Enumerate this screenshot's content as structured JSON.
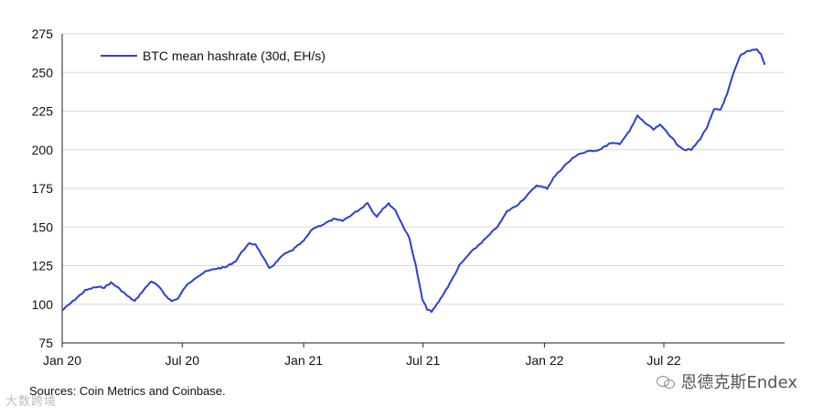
{
  "chart_data": {
    "type": "line",
    "title": "",
    "xlabel": "",
    "ylabel": "",
    "ylim": [
      75,
      275
    ],
    "yticks": [
      75,
      100,
      125,
      150,
      175,
      200,
      225,
      250,
      275
    ],
    "xlim": [
      "2020-01-01",
      "2022-12-31"
    ],
    "xticks": [
      {
        "date": "2020-01-01",
        "label": "Jan 20"
      },
      {
        "date": "2020-07-01",
        "label": "Jul 20"
      },
      {
        "date": "2021-01-01",
        "label": "Jan 21"
      },
      {
        "date": "2021-07-01",
        "label": "Jul 21"
      },
      {
        "date": "2022-01-01",
        "label": "Jan 22"
      },
      {
        "date": "2022-07-01",
        "label": "Jul 22"
      }
    ],
    "grid": "horizontal",
    "legend_position": "top-left",
    "series": [
      {
        "name": "BTC mean hashrate (30d, EH/s)",
        "color": "#2b3fd6",
        "points": [
          [
            "2020-01-01",
            96
          ],
          [
            "2020-01-20",
            103
          ],
          [
            "2020-02-05",
            109
          ],
          [
            "2020-02-20",
            111
          ],
          [
            "2020-03-05",
            111
          ],
          [
            "2020-03-15",
            114
          ],
          [
            "2020-03-25",
            111
          ],
          [
            "2020-04-10",
            105
          ],
          [
            "2020-04-20",
            102
          ],
          [
            "2020-05-01",
            108
          ],
          [
            "2020-05-15",
            115
          ],
          [
            "2020-05-25",
            112
          ],
          [
            "2020-06-05",
            106
          ],
          [
            "2020-06-15",
            102
          ],
          [
            "2020-06-25",
            104
          ],
          [
            "2020-07-05",
            111
          ],
          [
            "2020-07-20",
            117
          ],
          [
            "2020-08-05",
            121
          ],
          [
            "2020-08-20",
            123
          ],
          [
            "2020-09-05",
            124
          ],
          [
            "2020-09-20",
            128
          ],
          [
            "2020-10-01",
            135
          ],
          [
            "2020-10-10",
            139
          ],
          [
            "2020-10-20",
            139
          ],
          [
            "2020-11-01",
            130
          ],
          [
            "2020-11-10",
            123
          ],
          [
            "2020-11-20",
            127
          ],
          [
            "2020-12-01",
            132
          ],
          [
            "2020-12-15",
            135
          ],
          [
            "2021-01-01",
            141
          ],
          [
            "2021-01-15",
            149
          ],
          [
            "2021-02-01",
            152
          ],
          [
            "2021-02-15",
            155
          ],
          [
            "2021-03-01",
            154
          ],
          [
            "2021-03-15",
            158
          ],
          [
            "2021-04-01",
            163
          ],
          [
            "2021-04-08",
            166
          ],
          [
            "2021-04-15",
            160
          ],
          [
            "2021-04-22",
            157
          ],
          [
            "2021-05-01",
            162
          ],
          [
            "2021-05-10",
            165
          ],
          [
            "2021-05-20",
            161
          ],
          [
            "2021-05-30",
            152
          ],
          [
            "2021-06-10",
            143
          ],
          [
            "2021-06-20",
            125
          ],
          [
            "2021-06-30",
            103
          ],
          [
            "2021-07-07",
            97
          ],
          [
            "2021-07-14",
            95
          ],
          [
            "2021-07-25",
            102
          ],
          [
            "2021-08-10",
            113
          ],
          [
            "2021-08-25",
            125
          ],
          [
            "2021-09-10",
            133
          ],
          [
            "2021-09-25",
            139
          ],
          [
            "2021-10-10",
            145
          ],
          [
            "2021-10-25",
            152
          ],
          [
            "2021-11-05",
            160
          ],
          [
            "2021-11-20",
            164
          ],
          [
            "2021-12-05",
            170
          ],
          [
            "2021-12-20",
            177
          ],
          [
            "2022-01-05",
            175
          ],
          [
            "2022-01-15",
            182
          ],
          [
            "2022-02-01",
            190
          ],
          [
            "2022-02-20",
            197
          ],
          [
            "2022-03-10",
            199
          ],
          [
            "2022-03-25",
            200
          ],
          [
            "2022-04-10",
            204
          ],
          [
            "2022-04-25",
            204
          ],
          [
            "2022-05-10",
            212
          ],
          [
            "2022-05-22",
            222
          ],
          [
            "2022-06-01",
            218
          ],
          [
            "2022-06-15",
            213
          ],
          [
            "2022-06-25",
            216
          ],
          [
            "2022-07-05",
            212
          ],
          [
            "2022-07-20",
            204
          ],
          [
            "2022-08-01",
            200
          ],
          [
            "2022-08-12",
            200
          ],
          [
            "2022-08-25",
            207
          ],
          [
            "2022-09-05",
            215
          ],
          [
            "2022-09-15",
            226
          ],
          [
            "2022-09-25",
            226
          ],
          [
            "2022-10-05",
            236
          ],
          [
            "2022-10-15",
            250
          ],
          [
            "2022-10-25",
            261
          ],
          [
            "2022-11-05",
            264
          ],
          [
            "2022-11-18",
            265
          ],
          [
            "2022-11-25",
            262
          ],
          [
            "2022-12-01",
            255
          ]
        ]
      }
    ]
  },
  "footer": {
    "source": "Sources: Coin Metrics and Coinbase.",
    "watermark_left": "大数跨境",
    "watermark_right": "恩德克斯Endex"
  },
  "icons": {
    "watermark_right_icon": "wechat-icon"
  }
}
